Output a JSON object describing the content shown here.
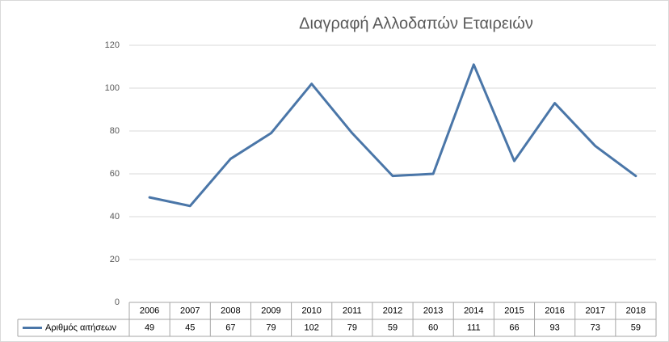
{
  "chart_data": {
    "type": "line",
    "title": "Διαγραφή Αλλοδαπών Εταιρειών",
    "categories": [
      "2006",
      "2007",
      "2008",
      "2009",
      "2010",
      "2011",
      "2012",
      "2013",
      "2014",
      "2015",
      "2016",
      "2017",
      "2018"
    ],
    "series": [
      {
        "name": "Αριθμός αιτήσεων",
        "color": "#4a76a8",
        "values": [
          49,
          45,
          67,
          79,
          102,
          79,
          59,
          60,
          111,
          66,
          93,
          73,
          59
        ]
      }
    ],
    "ylim": [
      0,
      120
    ],
    "yticks": [
      0,
      20,
      40,
      60,
      80,
      100,
      120
    ],
    "grid": true,
    "data_table": true
  }
}
